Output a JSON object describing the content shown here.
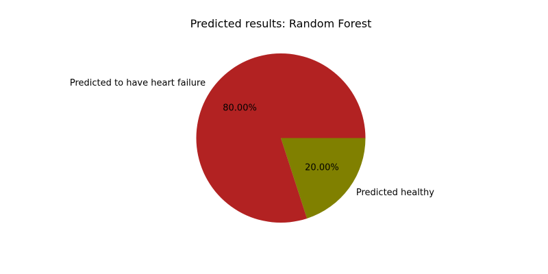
{
  "chart_data": {
    "type": "pie",
    "title": "Predicted results: Random Forest",
    "slices": [
      {
        "label": "Predicted healthy",
        "value": 20.0,
        "pct_label": "20.00%",
        "color": "#808000"
      },
      {
        "label": "Predicted to have heart failure",
        "value": 80.0,
        "pct_label": "80.00%",
        "color": "#b22222"
      }
    ],
    "start_angle_deg": 0,
    "direction": "clockwise-on-screen"
  }
}
